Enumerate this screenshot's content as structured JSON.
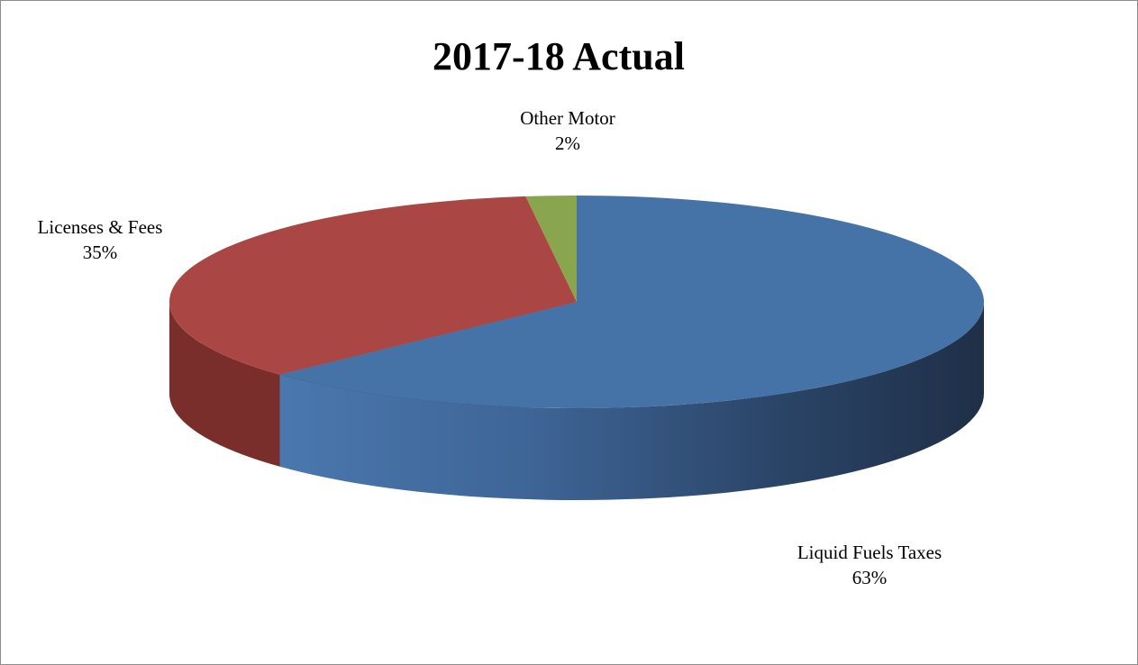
{
  "chart_data": {
    "type": "pie",
    "title": "2017-18 Actual",
    "slices": [
      {
        "label": "Liquid Fuels Taxes",
        "value": 63,
        "value_label": "63%",
        "color": "#4572a7",
        "side_dark": "#213149"
      },
      {
        "label": "Licenses & Fees",
        "value": 35,
        "value_label": "35%",
        "color": "#aa4643",
        "side_dark": "#7a2e2c"
      },
      {
        "label": "Other Motor",
        "value": 2,
        "value_label": "2%",
        "color": "#89a54e",
        "side_dark": "#5d7232"
      }
    ],
    "style": "3d",
    "legend": "none",
    "data_labels": "category and percent"
  }
}
